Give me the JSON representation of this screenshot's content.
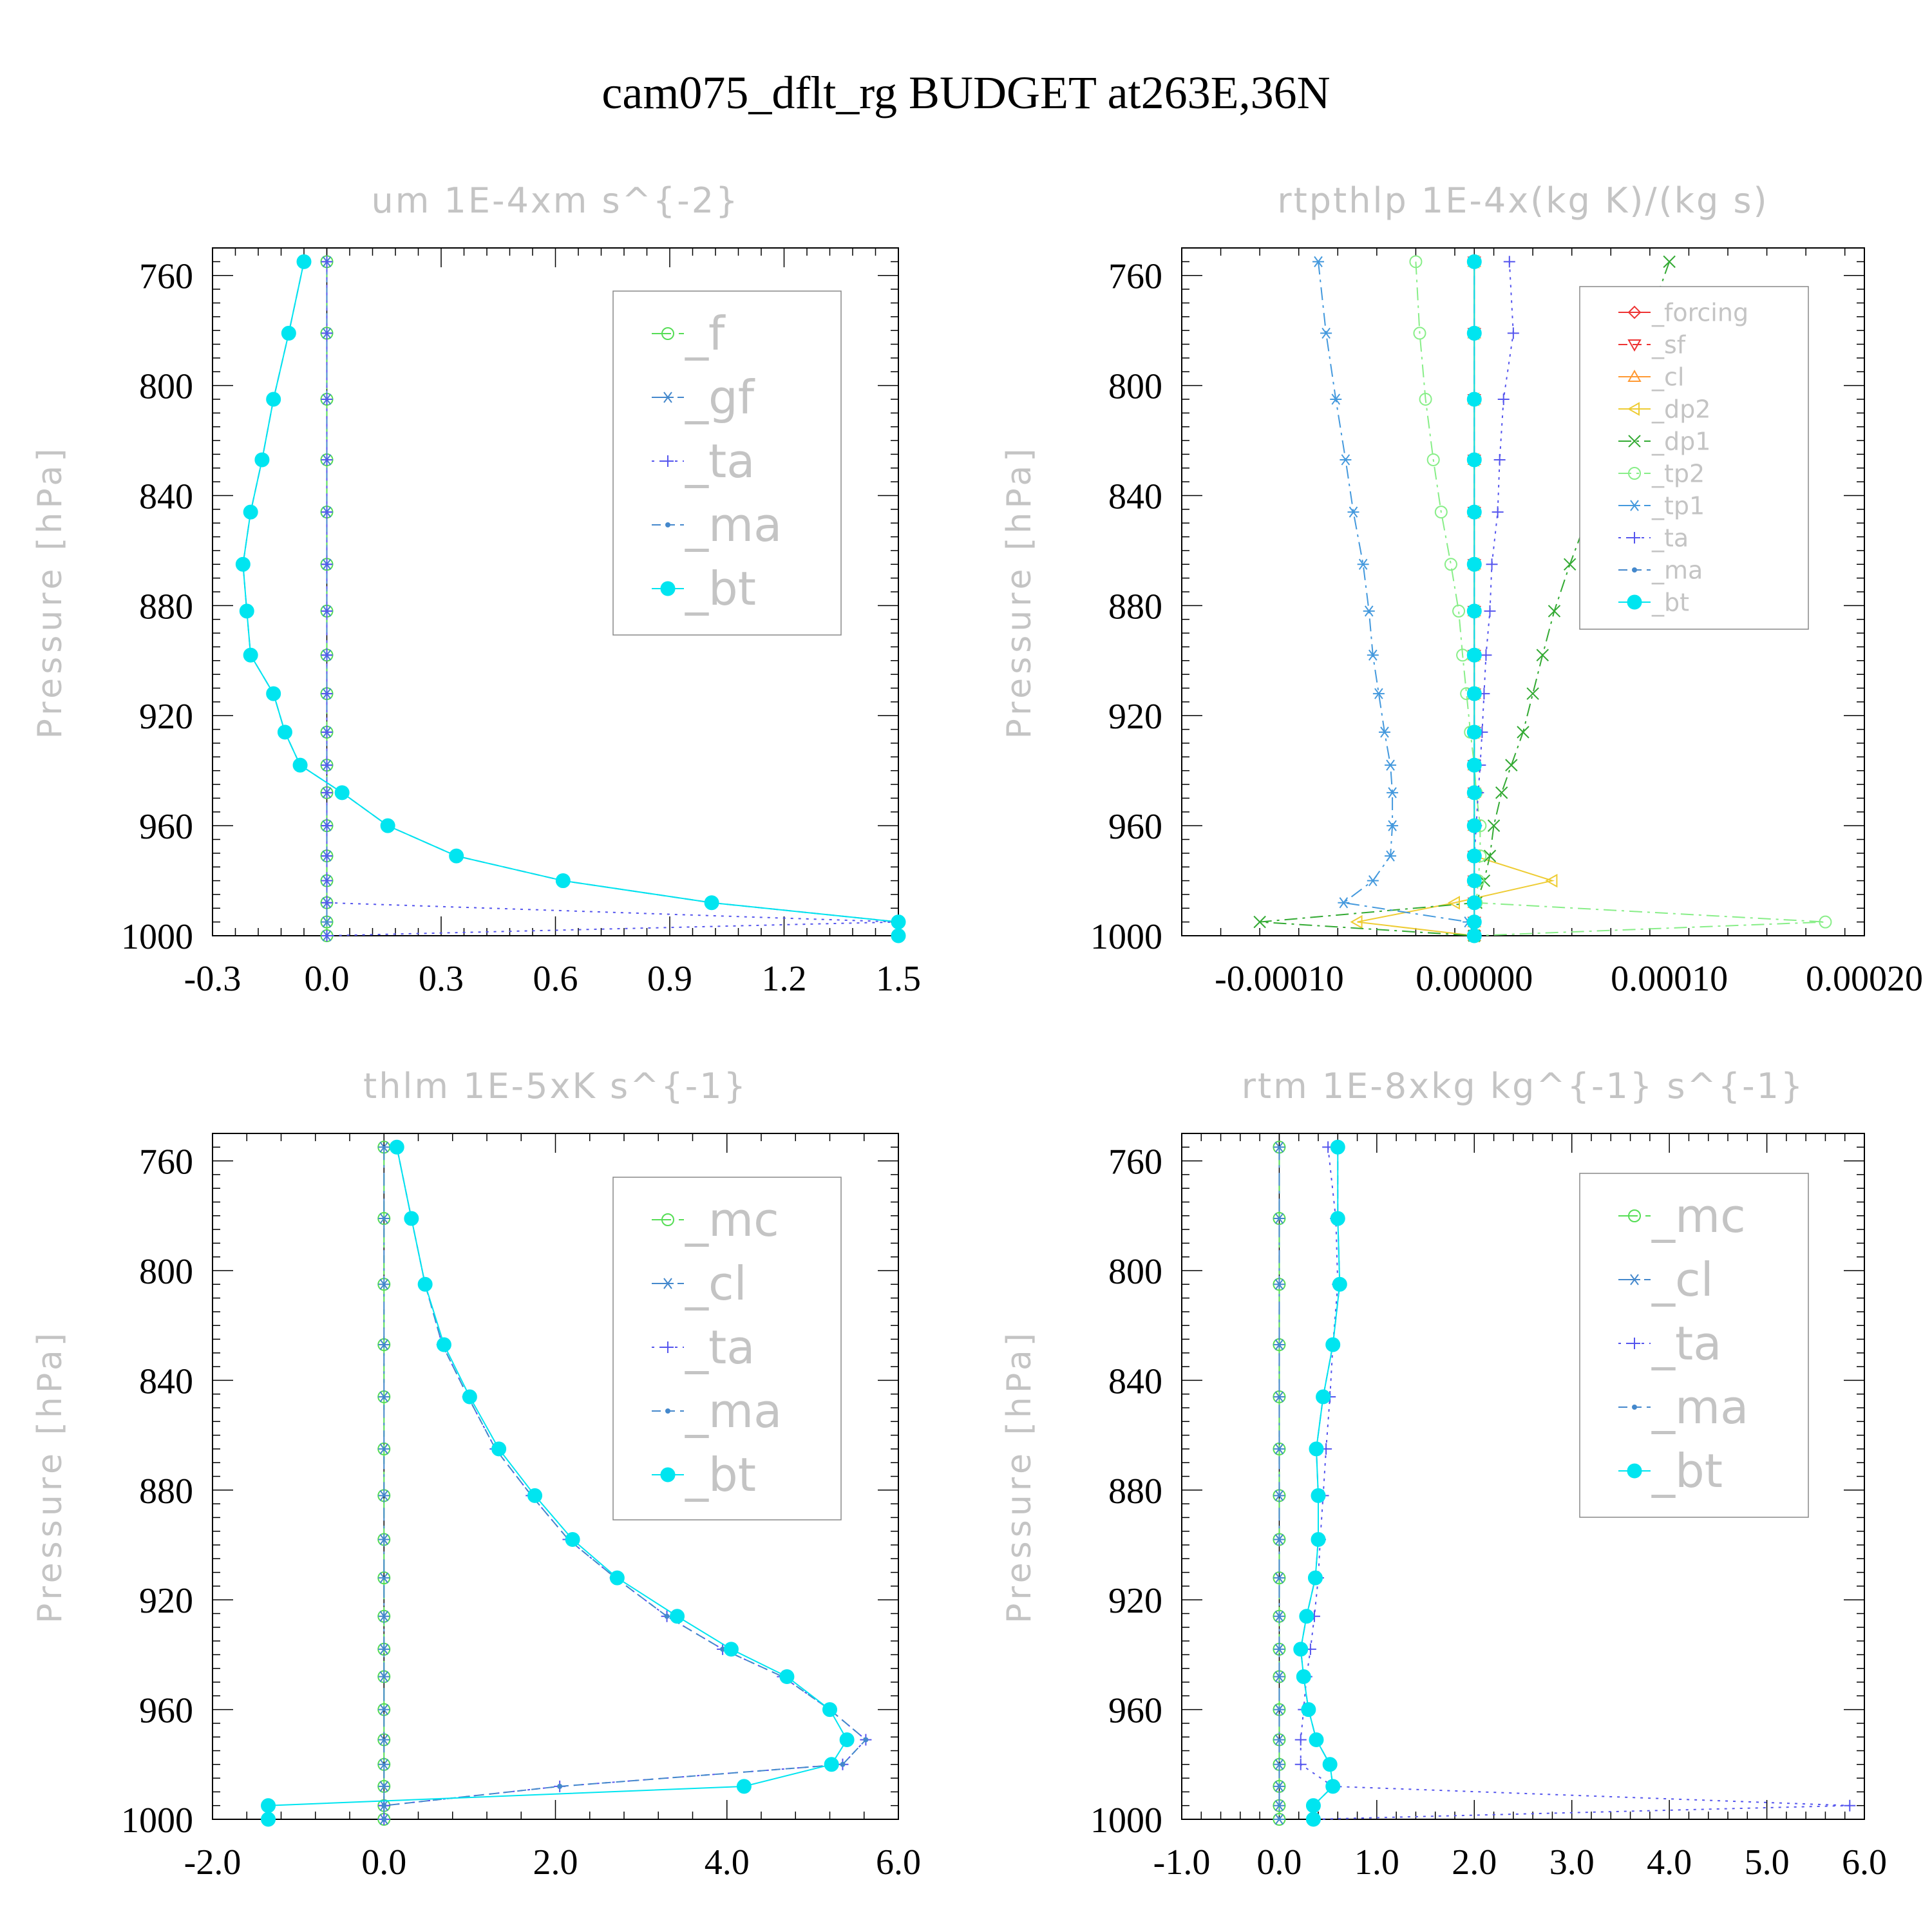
{
  "title": "cam075_dflt_rg  BUDGET at263E,36N",
  "colors": {
    "green": "#55dd55",
    "blue": "#4488cc",
    "purple": "#5555ee",
    "cyan": "#00e5f0",
    "red": "#ee3333",
    "orange": "#ff9933",
    "yellow": "#eecc33",
    "dkgreen": "#33aa33",
    "ltgreen": "#88ee88",
    "steel": "#4499dd"
  },
  "chart_data": [
    {
      "type": "line",
      "title": "um   1E-4xm s^{-2}",
      "ylabel": "Pressure [hPa]",
      "xlim": [
        -0.3,
        1.5
      ],
      "ylim": [
        1000,
        750
      ],
      "y_inverted": true,
      "xticks": [
        "-0.3",
        "0.0",
        "0.3",
        "0.6",
        "0.9",
        "1.2",
        "1.5"
      ],
      "yticks": [
        "760",
        "800",
        "840",
        "880",
        "920",
        "960",
        "1000"
      ],
      "legend_position": "top-right",
      "p": [
        755,
        781,
        805,
        827,
        846,
        865,
        882,
        898,
        912,
        926,
        938,
        948,
        960,
        971,
        980,
        988,
        995,
        1000
      ],
      "series": [
        {
          "name": "_f",
          "color": "green",
          "marker": "circle",
          "dash": "long",
          "values": [
            0,
            0,
            0,
            0,
            0,
            0,
            0,
            0,
            0,
            0,
            0,
            0,
            0,
            0,
            0,
            0,
            0,
            0
          ]
        },
        {
          "name": "_gf",
          "color": "blue",
          "marker": "star",
          "dash": "dashdot",
          "values": [
            0,
            0,
            0,
            0,
            0,
            0,
            0,
            0,
            0,
            0,
            0,
            0,
            0,
            0,
            0,
            0,
            0,
            0
          ]
        },
        {
          "name": "_ta",
          "color": "purple",
          "marker": "plus",
          "dash": "dot",
          "values": [
            0,
            0,
            0,
            0,
            0,
            0,
            0,
            0,
            0,
            0,
            0,
            0,
            0,
            0,
            0,
            0,
            1.5,
            0
          ]
        },
        {
          "name": "_ma",
          "color": "blue",
          "marker": "dot",
          "dash": "dash",
          "values": [
            -0.06,
            -0.1,
            -0.14,
            -0.17,
            -0.2,
            -0.22,
            -0.21,
            -0.2,
            -0.14,
            -0.11,
            -0.07,
            0.04,
            0.16,
            0.34,
            0.62,
            1.01,
            1.5,
            1.5
          ]
        },
        {
          "name": "_bt",
          "color": "cyan",
          "marker": "filled",
          "dash": "solid",
          "values": [
            -0.06,
            -0.1,
            -0.14,
            -0.17,
            -0.2,
            -0.22,
            -0.21,
            -0.2,
            -0.14,
            -0.11,
            -0.07,
            0.04,
            0.16,
            0.34,
            0.62,
            1.01,
            1.5,
            1.5
          ]
        }
      ]
    },
    {
      "type": "line",
      "title": "rtpthlp   1E-4x(kg K)/(kg s)",
      "ylabel": "Pressure [hPa]",
      "xlim": [
        -0.00015,
        0.0002
      ],
      "ylim": [
        1000,
        750
      ],
      "y_inverted": true,
      "xticks": [
        "-0.00010",
        "0.00000",
        "0.00010",
        "0.00020"
      ],
      "yticks": [
        "760",
        "800",
        "840",
        "880",
        "920",
        "960",
        "1000"
      ],
      "legend_position": "top-right",
      "p": [
        755,
        781,
        805,
        827,
        846,
        865,
        882,
        898,
        912,
        926,
        938,
        948,
        960,
        971,
        980,
        988,
        995,
        1000
      ],
      "series": [
        {
          "name": "_forcing",
          "color": "red",
          "marker": "diamond",
          "dash": "solid",
          "values": [
            0,
            0,
            0,
            0,
            0,
            0,
            0,
            0,
            0,
            0,
            0,
            0,
            0,
            0,
            0,
            0,
            0,
            0
          ]
        },
        {
          "name": "_sf",
          "color": "red",
          "marker": "tri-down",
          "dash": "dash",
          "values": [
            0,
            0,
            0,
            0,
            0,
            0,
            0,
            0,
            0,
            0,
            0,
            0,
            0,
            0,
            0,
            0,
            0,
            0
          ]
        },
        {
          "name": "_cl",
          "color": "orange",
          "marker": "tri-up",
          "dash": "solid",
          "values": [
            0,
            0,
            0,
            0,
            0,
            0,
            0,
            0,
            0,
            0,
            0,
            0,
            0,
            0,
            0,
            0,
            0,
            0
          ]
        },
        {
          "name": "_dp2",
          "color": "yellow",
          "marker": "tri-left",
          "dash": "solid",
          "values": [
            0,
            0,
            0,
            0,
            0,
            0,
            0,
            0,
            0,
            0,
            0,
            0,
            0,
            0,
            4e-05,
            -1e-05,
            -6e-05,
            0
          ]
        },
        {
          "name": "_dp1",
          "color": "dkgreen",
          "marker": "cross",
          "dash": "dashdot",
          "values": [
            0.0001,
            8.7e-05,
            7.7e-05,
            6.8e-05,
            5.9e-05,
            4.9e-05,
            4.1e-05,
            3.5e-05,
            3e-05,
            2.5e-05,
            1.9e-05,
            1.4e-05,
            1e-05,
            8e-06,
            5e-06,
            1e-06,
            -0.00011,
            0
          ]
        },
        {
          "name": "_tp2",
          "color": "ltgreen",
          "marker": "circle",
          "dash": "dashdot",
          "values": [
            -3e-05,
            -2.8e-05,
            -2.5e-05,
            -2.1e-05,
            -1.7e-05,
            -1.2e-05,
            -8e-06,
            -6e-06,
            -4e-06,
            -2e-06,
            0,
            1e-06,
            3e-06,
            3e-06,
            2e-06,
            1e-06,
            0.00018,
            0
          ]
        },
        {
          "name": "_tp1",
          "color": "steel",
          "marker": "star",
          "dash": "dashdot",
          "values": [
            -8e-05,
            -7.6e-05,
            -7.1e-05,
            -6.6e-05,
            -6.2e-05,
            -5.7e-05,
            -5.4e-05,
            -5.2e-05,
            -4.9e-05,
            -4.6e-05,
            -4.3e-05,
            -4.2e-05,
            -4.2e-05,
            -4.3e-05,
            -5.2e-05,
            -6.7e-05,
            -3e-06,
            0
          ]
        },
        {
          "name": "_ta",
          "color": "purple",
          "marker": "plus",
          "dash": "dot",
          "values": [
            1.8e-05,
            2e-05,
            1.5e-05,
            1.3e-05,
            1.2e-05,
            9e-06,
            8e-06,
            6e-06,
            5e-06,
            4e-06,
            3e-06,
            2e-06,
            1e-06,
            0,
            0,
            0,
            0,
            0
          ]
        },
        {
          "name": "_ma",
          "color": "blue",
          "marker": "dot",
          "dash": "dash",
          "values": [
            0,
            0,
            0,
            0,
            0,
            0,
            0,
            0,
            0,
            0,
            0,
            0,
            0,
            0,
            0,
            0,
            0,
            0
          ]
        },
        {
          "name": "_bt",
          "color": "cyan",
          "marker": "filled",
          "dash": "solid",
          "values": [
            0,
            0,
            0,
            0,
            0,
            0,
            0,
            0,
            0,
            0,
            0,
            0,
            0,
            0,
            0,
            0,
            0,
            0
          ]
        }
      ]
    },
    {
      "type": "line",
      "title": "thlm   1E-5xK s^{-1}",
      "ylabel": "Pressure [hPa]",
      "xlim": [
        -2.0,
        6.0
      ],
      "ylim": [
        1000,
        750
      ],
      "y_inverted": true,
      "xticks": [
        "-2.0",
        "0.0",
        "2.0",
        "4.0",
        "6.0"
      ],
      "yticks": [
        "760",
        "800",
        "840",
        "880",
        "920",
        "960",
        "1000"
      ],
      "legend_position": "top-right",
      "p": [
        755,
        781,
        805,
        827,
        846,
        865,
        882,
        898,
        912,
        926,
        938,
        948,
        960,
        971,
        980,
        988,
        995,
        1000
      ],
      "series": [
        {
          "name": "_mc",
          "color": "green",
          "marker": "circle",
          "dash": "long",
          "values": [
            0,
            0,
            0,
            0,
            0,
            0,
            0,
            0,
            0,
            0,
            0,
            0,
            0,
            0,
            0,
            0,
            0,
            0
          ]
        },
        {
          "name": "_cl",
          "color": "blue",
          "marker": "star",
          "dash": "dashdot",
          "values": [
            0,
            0,
            0,
            0,
            0,
            0,
            0,
            0,
            0,
            0,
            0,
            0,
            0,
            0,
            0,
            0,
            0,
            0
          ]
        },
        {
          "name": "_ta",
          "color": "purple",
          "marker": "plus",
          "dash": "dot",
          "values": [
            0.15,
            0.32,
            0.48,
            0.68,
            0.98,
            1.3,
            1.72,
            2.15,
            2.7,
            3.3,
            3.95,
            4.65,
            5.2,
            5.62,
            5.35,
            2.05,
            0,
            0
          ]
        },
        {
          "name": "_ma",
          "color": "blue",
          "marker": "dot",
          "dash": "dash",
          "values": [
            0.15,
            0.32,
            0.48,
            0.68,
            0.98,
            1.3,
            1.72,
            2.15,
            2.7,
            3.3,
            3.95,
            4.65,
            5.2,
            5.62,
            5.35,
            2.05,
            0,
            0
          ]
        },
        {
          "name": "_bt",
          "color": "cyan",
          "marker": "filled",
          "dash": "solid",
          "values": [
            0.15,
            0.32,
            0.48,
            0.7,
            1.0,
            1.34,
            1.76,
            2.2,
            2.72,
            3.42,
            4.05,
            4.7,
            5.2,
            5.4,
            5.22,
            4.2,
            -1.35,
            -1.35
          ]
        }
      ]
    },
    {
      "type": "line",
      "title": "rtm   1E-8xkg kg^{-1} s^{-1}",
      "ylabel": "Pressure [hPa]",
      "xlim": [
        -1.0,
        6.0
      ],
      "ylim": [
        1000,
        750
      ],
      "y_inverted": true,
      "xticks": [
        "-1.0",
        "0.0",
        "1.0",
        "2.0",
        "3.0",
        "4.0",
        "5.0",
        "6.0"
      ],
      "yticks": [
        "760",
        "800",
        "840",
        "880",
        "920",
        "960",
        "1000"
      ],
      "legend_position": "top-right",
      "p": [
        755,
        781,
        805,
        827,
        846,
        865,
        882,
        898,
        912,
        926,
        938,
        948,
        960,
        971,
        980,
        988,
        995,
        1000
      ],
      "series": [
        {
          "name": "_mc",
          "color": "green",
          "marker": "circle",
          "dash": "long",
          "values": [
            0,
            0,
            0,
            0,
            0,
            0,
            0,
            0,
            0,
            0,
            0,
            0,
            0,
            0,
            0,
            0,
            0,
            0
          ]
        },
        {
          "name": "_cl",
          "color": "blue",
          "marker": "star",
          "dash": "dashdot",
          "values": [
            0,
            0,
            0,
            0,
            0,
            0,
            0,
            0,
            0,
            0,
            0,
            0,
            0,
            0,
            0,
            0,
            0,
            0
          ]
        },
        {
          "name": "_ta",
          "color": "purple",
          "marker": "plus",
          "dash": "dot",
          "values": [
            0.5,
            0.58,
            0.6,
            0.55,
            0.52,
            0.48,
            0.45,
            0.42,
            0.4,
            0.36,
            0.32,
            0.28,
            0.25,
            0.22,
            0.22,
            0.55,
            5.85,
            0.35
          ]
        },
        {
          "name": "_ma",
          "color": "blue",
          "marker": "dot",
          "dash": "dash",
          "values": [
            0.6,
            0.6,
            0.62,
            0.55,
            0.45,
            0.38,
            0.4,
            0.4,
            0.37,
            0.28,
            0.22,
            0.25,
            0.3,
            0.38,
            0.52,
            0.55,
            0.35,
            0.35
          ]
        },
        {
          "name": "_bt",
          "color": "cyan",
          "marker": "filled",
          "dash": "solid",
          "values": [
            0.6,
            0.6,
            0.62,
            0.55,
            0.45,
            0.38,
            0.4,
            0.4,
            0.37,
            0.28,
            0.22,
            0.25,
            0.3,
            0.38,
            0.52,
            0.55,
            0.35,
            0.35
          ]
        }
      ]
    }
  ]
}
